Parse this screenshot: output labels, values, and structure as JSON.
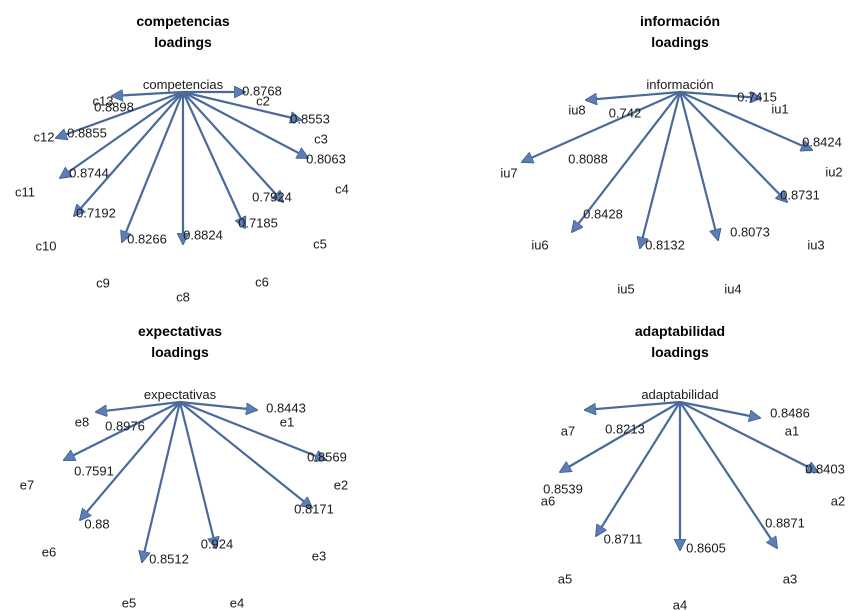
{
  "colors": {
    "edge": "#4a6a9a",
    "arrow_fill": "#5b7fb5",
    "text": "#1a1a1a"
  },
  "panels": [
    {
      "title": [
        "competencias",
        "loadings"
      ],
      "construct": "competencias",
      "indicators": [
        {
          "name": "c2",
          "loading": "0.8768"
        },
        {
          "name": "c3",
          "loading": "0.8553"
        },
        {
          "name": "c4",
          "loading": "0.8063"
        },
        {
          "name": "c5",
          "loading": "0.7924"
        },
        {
          "name": "c6",
          "loading": "0.7185"
        },
        {
          "name": "c8",
          "loading": "0.8824"
        },
        {
          "name": "c9",
          "loading": "0.8266"
        },
        {
          "name": "c10",
          "loading": "0.7192"
        },
        {
          "name": "c11",
          "loading": "0.8744"
        },
        {
          "name": "c12",
          "loading": "0.8855"
        },
        {
          "name": "c13",
          "loading": "0.8898"
        }
      ]
    },
    {
      "title": [
        "información",
        "loadings"
      ],
      "construct": "información",
      "indicators": [
        {
          "name": "iu1",
          "loading": "0.7415"
        },
        {
          "name": "iu2",
          "loading": "0.8424"
        },
        {
          "name": "iu3",
          "loading": "0.8731"
        },
        {
          "name": "iu4",
          "loading": "0.8073"
        },
        {
          "name": "iu5",
          "loading": "0.8132"
        },
        {
          "name": "iu6",
          "loading": "0.8428"
        },
        {
          "name": "iu7",
          "loading": "0.8088"
        },
        {
          "name": "iu8",
          "loading": "0.742"
        }
      ]
    },
    {
      "title": [
        "expectativas",
        "loadings"
      ],
      "construct": "expectativas",
      "indicators": [
        {
          "name": "e1",
          "loading": "0.8443"
        },
        {
          "name": "e2",
          "loading": "0.8569"
        },
        {
          "name": "e3",
          "loading": "0.8171"
        },
        {
          "name": "e4",
          "loading": "0.924"
        },
        {
          "name": "e5",
          "loading": "0.8512"
        },
        {
          "name": "e6",
          "loading": "0.88"
        },
        {
          "name": "e7",
          "loading": "0.7591"
        },
        {
          "name": "e8",
          "loading": "0.8976"
        }
      ]
    },
    {
      "title": [
        "adaptabilidad",
        "loadings"
      ],
      "construct": "adaptabilidad",
      "indicators": [
        {
          "name": "a1",
          "loading": "0.8486"
        },
        {
          "name": "a2",
          "loading": "0.8403"
        },
        {
          "name": "a3",
          "loading": "0.8871"
        },
        {
          "name": "a4",
          "loading": "0.8605"
        },
        {
          "name": "a5",
          "loading": "0.8711"
        },
        {
          "name": "a6",
          "loading": "0.8539"
        },
        {
          "name": "a7",
          "loading": "0.8213"
        }
      ]
    }
  ]
}
